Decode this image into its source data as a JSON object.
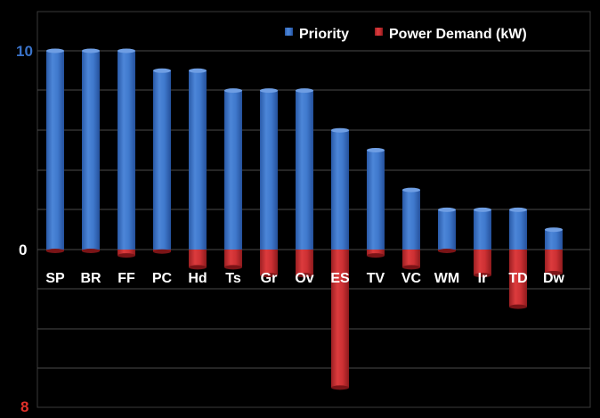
{
  "chart_data": {
    "type": "bar",
    "categories": [
      "SP",
      "BR",
      "FF",
      "PC",
      "Hd",
      "Ts",
      "Gr",
      "Ov",
      "ES",
      "TV",
      "VC",
      "WM",
      "Ir",
      "TD",
      "Dw"
    ],
    "series": [
      {
        "name": "Priority",
        "axis": "top",
        "values": [
          10,
          10,
          10,
          9,
          9,
          8,
          8,
          8,
          6,
          5,
          3,
          2,
          2,
          2,
          1
        ],
        "color": "#3a73c9"
      },
      {
        "name": "Power Demand (kW)",
        "axis": "bottom",
        "values": [
          0.05,
          0.05,
          0.3,
          0.1,
          0.9,
          0.9,
          1.3,
          1.3,
          7.0,
          0.3,
          0.9,
          0.05,
          1.3,
          2.9,
          1.2
        ],
        "color": "#c0282d"
      }
    ],
    "priority_axis": {
      "range": [
        0,
        10
      ],
      "ticks": [
        "10",
        "0"
      ],
      "tick_color": "#3a73c9"
    },
    "power_axis": {
      "range": [
        0,
        8
      ],
      "ticks": [
        "0",
        "8"
      ],
      "tick_color": "#e0302a",
      "inverted": true
    },
    "grid": true,
    "legend_position": "top-right",
    "background": "#000000",
    "gridline_color": "#4a4a4a"
  }
}
